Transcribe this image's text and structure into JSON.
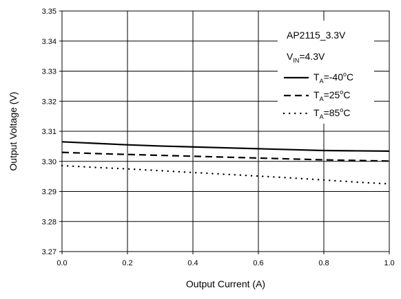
{
  "chart_data": {
    "type": "line",
    "xlabel": "Output Current (A)",
    "ylabel": "Output Voltage (V)",
    "xlim": [
      0.0,
      1.0
    ],
    "ylim": [
      3.27,
      3.35
    ],
    "x_ticks": [
      "0.0",
      "0.2",
      "0.4",
      "0.6",
      "0.8",
      "1.0"
    ],
    "y_ticks": [
      "3.27",
      "3.28",
      "3.29",
      "3.30",
      "3.31",
      "3.32",
      "3.33",
      "3.34",
      "3.35"
    ],
    "grid": true,
    "legend_placement": "top-right",
    "annotations": {
      "title": "AP2115_3.3V",
      "vin_main": "V",
      "vin_sub": "IN",
      "vin_value": "=4.3V"
    },
    "series": [
      {
        "name": "T_A=-40°C",
        "label_main": "T",
        "label_sub": "A",
        "label_value": "=-40",
        "label_sup": "o",
        "label_unit": "C",
        "style": "solid",
        "x": [
          0.0,
          0.1,
          0.2,
          0.3,
          0.4,
          0.5,
          0.6,
          0.7,
          0.8,
          0.9,
          1.0
        ],
        "y": [
          3.3065,
          3.306,
          3.3055,
          3.3051,
          3.3048,
          3.3045,
          3.3042,
          3.3039,
          3.3036,
          3.3035,
          3.3034
        ]
      },
      {
        "name": "T_A=25°C",
        "label_main": "T",
        "label_sub": "A",
        "label_value": "=25",
        "label_sup": "o",
        "label_unit": "C",
        "style": "dashed",
        "x": [
          0.0,
          0.1,
          0.2,
          0.3,
          0.4,
          0.5,
          0.6,
          0.7,
          0.8,
          0.9,
          1.0
        ],
        "y": [
          3.303,
          3.3026,
          3.3023,
          3.302,
          3.3017,
          3.3014,
          3.3011,
          3.3008,
          3.3005,
          3.3003,
          3.3001
        ]
      },
      {
        "name": "T_A=85°C",
        "label_main": "T",
        "label_sub": "A",
        "label_value": "=85",
        "label_sup": "o",
        "label_unit": "C",
        "style": "dotted",
        "x": [
          0.0,
          0.1,
          0.2,
          0.3,
          0.4,
          0.5,
          0.6,
          0.7,
          0.8,
          0.9,
          1.0
        ],
        "y": [
          3.2986,
          3.298,
          3.2975,
          3.2969,
          3.2963,
          3.2957,
          3.2951,
          3.2945,
          3.2938,
          3.2931,
          3.2925
        ]
      }
    ]
  }
}
